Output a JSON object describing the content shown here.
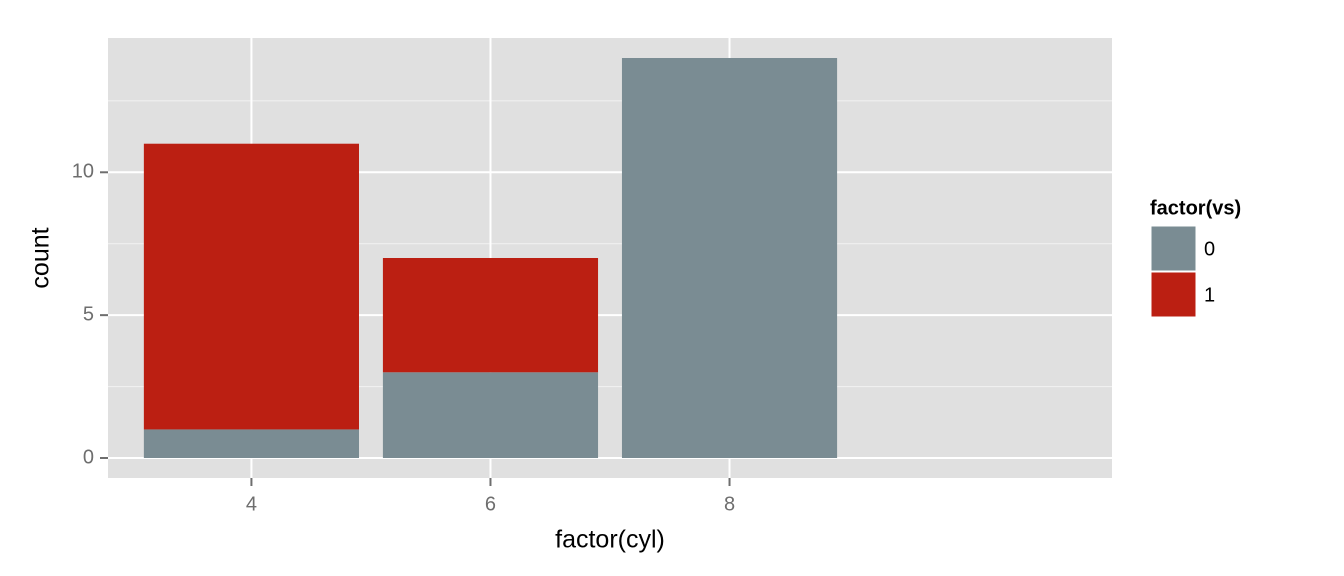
{
  "chart_data": {
    "type": "stacked-bar",
    "x_label": "factor(cyl)",
    "y_label": "count",
    "legend_title": "factor(vs)",
    "categories": [
      "4",
      "6",
      "8"
    ],
    "series": [
      {
        "name": "0",
        "color": "#7a8c93",
        "values": [
          1,
          3,
          14
        ]
      },
      {
        "name": "1",
        "color": "#bb1f12",
        "values": [
          10,
          4,
          0
        ]
      }
    ],
    "ylim": [
      -0.7,
      14.7
    ],
    "yticks": [
      0,
      5,
      10
    ],
    "minor_yticks": [
      2.5,
      7.5,
      12.5
    ],
    "grid": true,
    "legend_position": "right"
  }
}
